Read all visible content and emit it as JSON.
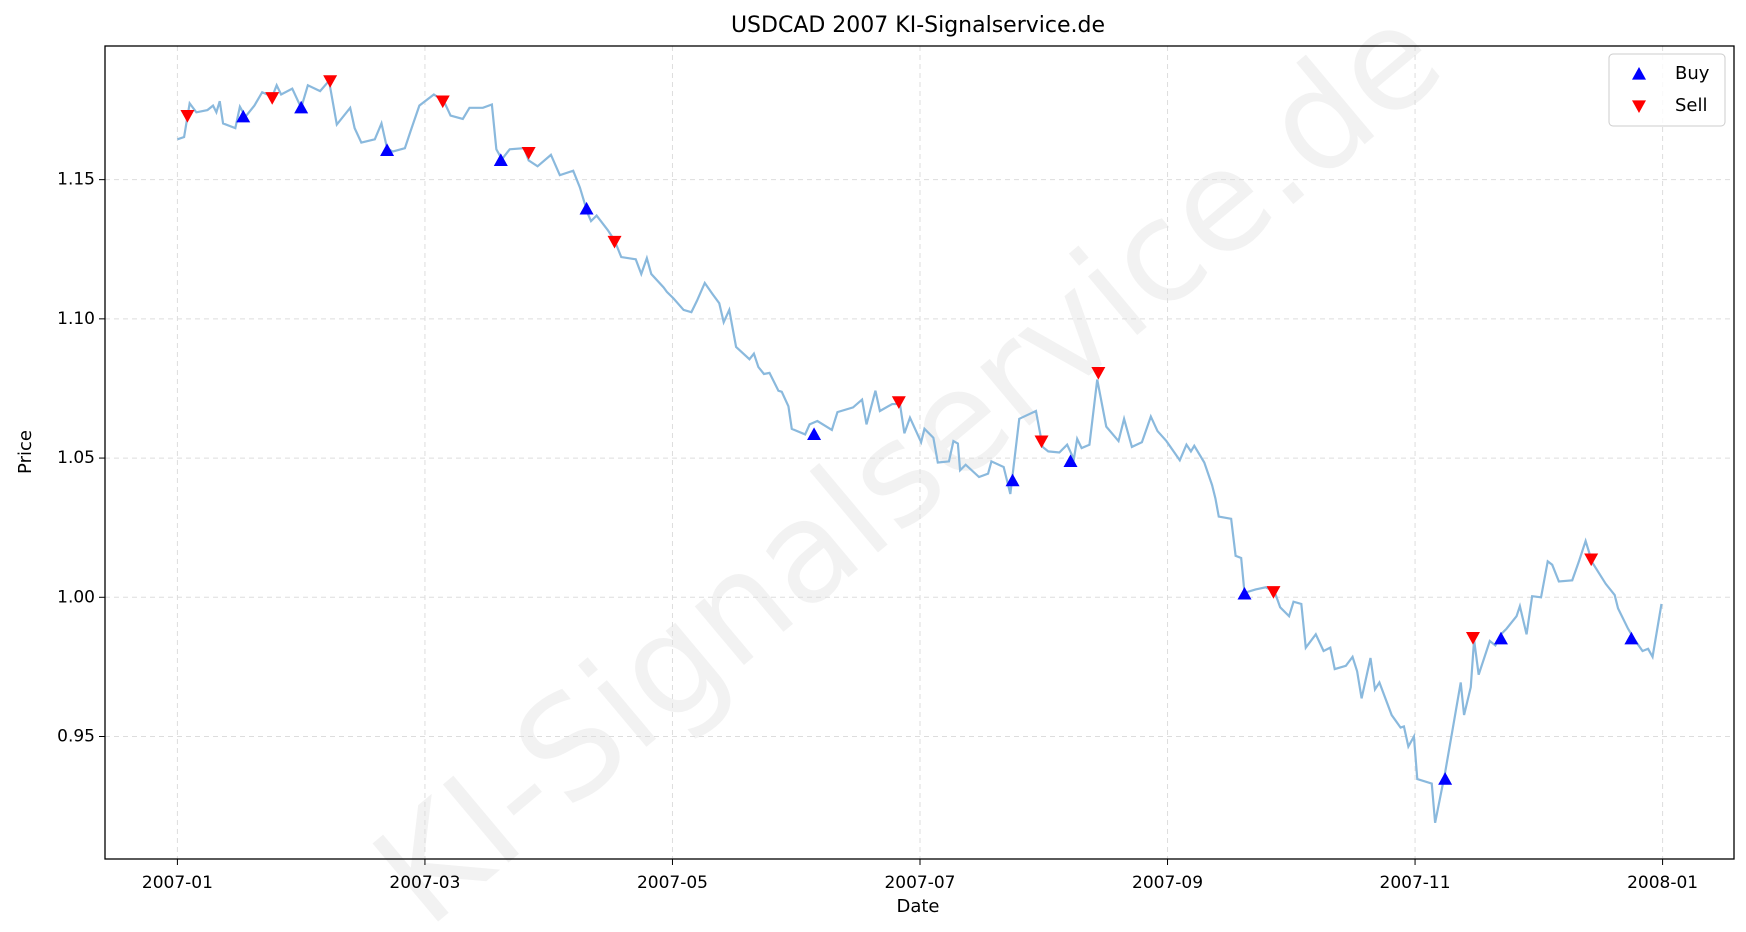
{
  "chart_data": {
    "type": "line",
    "title": "USDCAD 2007 KI-Signalservice.de",
    "xlabel": "Date",
    "ylabel": "Price",
    "watermark": "KI-Signalservice.de",
    "color": "#8ab9dd",
    "grid": true,
    "legend": "upper right",
    "xlim": [
      -0.585,
      12.577
    ],
    "ylim": [
      0.906,
      1.198
    ],
    "xticks": [
      {
        "value": 0,
        "label": "2007-01"
      },
      {
        "value": 2,
        "label": "2007-03"
      },
      {
        "value": 4,
        "label": "2007-05"
      },
      {
        "value": 6,
        "label": "2007-07"
      },
      {
        "value": 8,
        "label": "2007-09"
      },
      {
        "value": 10,
        "label": "2007-11"
      },
      {
        "value": 12,
        "label": "2008-01"
      }
    ],
    "yticks": [
      0.95,
      {
        "value": 1.0,
        "label": "1.00"
      },
      1.05,
      {
        "value": 1.1,
        "label": "1.10"
      },
      1.15
    ],
    "x": [
      0,
      0.054,
      0.099,
      0.153,
      0.243,
      0.288,
      0.315,
      0.342,
      0.369,
      0.468,
      0.505,
      0.55,
      0.622,
      0.685,
      0.766,
      0.802,
      0.838,
      0.928,
      1.0,
      1.054,
      1.153,
      1.225,
      1.288,
      1.396,
      1.432,
      1.486,
      1.595,
      1.649,
      1.694,
      1.739,
      1.838,
      1.883,
      1.955,
      2.072,
      2.153,
      2.207,
      2.306,
      2.36,
      2.468,
      2.541,
      2.577,
      2.622,
      2.685,
      2.802,
      2.838,
      2.91,
      3.018,
      3.09,
      3.198,
      3.252,
      3.315,
      3.342,
      3.387,
      3.477,
      3.532,
      3.586,
      3.703,
      3.748,
      3.793,
      3.829,
      3.928,
      3.955,
      4.009,
      4.09,
      4.153,
      4.198,
      4.261,
      4.324,
      4.378,
      4.414,
      4.459,
      4.514,
      4.622,
      4.658,
      4.694,
      4.739,
      4.784,
      4.856,
      4.883,
      4.937,
      4.964,
      5.072,
      5.108,
      5.171,
      5.288,
      5.333,
      5.459,
      5.532,
      5.568,
      5.64,
      5.676,
      5.775,
      5.838,
      5.874,
      5.919,
      6.009,
      6.036,
      6.108,
      6.144,
      6.234,
      6.27,
      6.306,
      6.324,
      6.369,
      6.477,
      6.55,
      6.577,
      6.676,
      6.73,
      6.802,
      6.937,
      6.991,
      7.036,
      7.126,
      7.189,
      7.243,
      7.27,
      7.306,
      7.369,
      7.432,
      7.505,
      7.604,
      7.649,
      7.712,
      7.793,
      7.865,
      7.919,
      7.991,
      8.099,
      8.153,
      8.189,
      8.216,
      8.297,
      8.36,
      8.387,
      8.414,
      8.514,
      8.55,
      8.595,
      8.622,
      8.712,
      8.793,
      8.865,
      8.91,
      8.982,
      9.018,
      9.081,
      9.117,
      9.198,
      9.261,
      9.315,
      9.351,
      9.441,
      9.495,
      9.532,
      9.568,
      9.64,
      9.676,
      9.712,
      9.811,
      9.883,
      9.91,
      9.946,
      9.991,
      10.018,
      10.135,
      10.162,
      10.243,
      10.306,
      10.369,
      10.396,
      10.45,
      10.477,
      10.514,
      10.604,
      10.649,
      10.694,
      10.739,
      10.82,
      10.847,
      10.901,
      10.946,
      11.018,
      11.072,
      11.108,
      11.162,
      11.27,
      11.324,
      11.378,
      11.432,
      11.541,
      11.613,
      11.64,
      11.721,
      11.775,
      11.838,
      11.883,
      11.919,
      11.991
    ],
    "values": [
      1.1645,
      1.1653,
      1.1774,
      1.1742,
      1.175,
      1.1766,
      1.1742,
      1.1782,
      1.1702,
      1.1685,
      1.1762,
      1.1726,
      1.1766,
      1.1814,
      1.1798,
      1.1839,
      1.1806,
      1.1827,
      1.1758,
      1.1839,
      1.1818,
      1.1855,
      1.1698,
      1.1758,
      1.1685,
      1.1633,
      1.1645,
      1.1702,
      1.1613,
      1.1601,
      1.1613,
      1.1673,
      1.1766,
      1.1806,
      1.1782,
      1.173,
      1.1718,
      1.1758,
      1.1758,
      1.177,
      1.1609,
      1.1573,
      1.1609,
      1.1613,
      1.1569,
      1.1548,
      1.1589,
      1.1516,
      1.1532,
      1.1472,
      1.1379,
      1.1351,
      1.1371,
      1.1319,
      1.1282,
      1.1222,
      1.1214,
      1.1161,
      1.1218,
      1.1161,
      1.1113,
      1.1097,
      1.1073,
      1.1032,
      1.1024,
      1.1065,
      1.1129,
      1.1089,
      1.1056,
      1.0988,
      1.1032,
      1.0899,
      1.0855,
      1.0875,
      1.0827,
      1.0802,
      1.0806,
      1.0742,
      1.0738,
      1.0686,
      1.0605,
      1.0585,
      1.0621,
      1.0633,
      1.0601,
      1.0665,
      1.0682,
      1.071,
      1.0621,
      1.0742,
      1.0669,
      1.0694,
      1.0694,
      1.0589,
      1.0645,
      1.0557,
      1.0605,
      1.0573,
      1.0484,
      1.0488,
      1.0561,
      1.0552,
      1.0456,
      1.0476,
      1.0432,
      1.0444,
      1.0488,
      1.0468,
      1.0371,
      1.0641,
      1.0669,
      1.054,
      1.0524,
      1.052,
      1.0548,
      1.0496,
      1.0569,
      1.0536,
      1.0548,
      1.0782,
      1.0613,
      1.0561,
      1.0641,
      1.054,
      1.0557,
      1.0649,
      1.0597,
      1.0561,
      1.0492,
      1.0548,
      1.0524,
      1.0544,
      1.0484,
      1.0403,
      1.0355,
      1.029,
      1.0282,
      1.0149,
      1.0141,
      1.0016,
      1.0028,
      1.0036,
      1.002,
      0.9964,
      0.9932,
      0.9984,
      0.9976,
      0.9819,
      0.9867,
      0.9807,
      0.9819,
      0.9742,
      0.9754,
      0.9786,
      0.9734,
      0.9637,
      0.9782,
      0.9669,
      0.9694,
      0.9577,
      0.9532,
      0.9536,
      0.9464,
      0.95,
      0.9347,
      0.9331,
      0.919,
      0.9371,
      0.9532,
      0.9694,
      0.9577,
      0.9677,
      0.9847,
      0.9722,
      0.9843,
      0.9827,
      0.9867,
      0.9887,
      0.9932,
      0.9968,
      0.9867,
      1.0004,
      1.0,
      1.0129,
      1.0117,
      1.0057,
      1.0061,
      1.0129,
      1.0202,
      1.0125,
      1.0048,
      1.0008,
      0.996,
      0.9887,
      0.9847,
      0.9807,
      0.9815,
      0.9786,
      0.9976
    ],
    "series": [
      {
        "name": "Buy",
        "color": "#0000ff",
        "marker": "triangle-up",
        "x": [
          0.532,
          1.0,
          1.694,
          2.613,
          3.306,
          5.144,
          6.748,
          7.216,
          8.622,
          10.243,
          10.694,
          11.748
        ],
        "values": [
          1.1726,
          1.1758,
          1.1605,
          1.1569,
          1.1395,
          1.0585,
          1.0419,
          1.0488,
          1.0012,
          0.9347,
          0.9851,
          0.9851
        ]
      },
      {
        "name": "Sell",
        "color": "#ff0000",
        "marker": "triangle-down",
        "x": [
          0.081,
          0.766,
          1.234,
          2.144,
          2.838,
          3.532,
          5.829,
          6.982,
          7.441,
          8.856,
          10.468,
          11.423
        ],
        "values": [
          1.173,
          1.1794,
          1.1855,
          1.1782,
          1.1597,
          1.1278,
          1.0702,
          1.0561,
          1.0807,
          1.002,
          0.9855,
          1.0137
        ]
      }
    ]
  }
}
